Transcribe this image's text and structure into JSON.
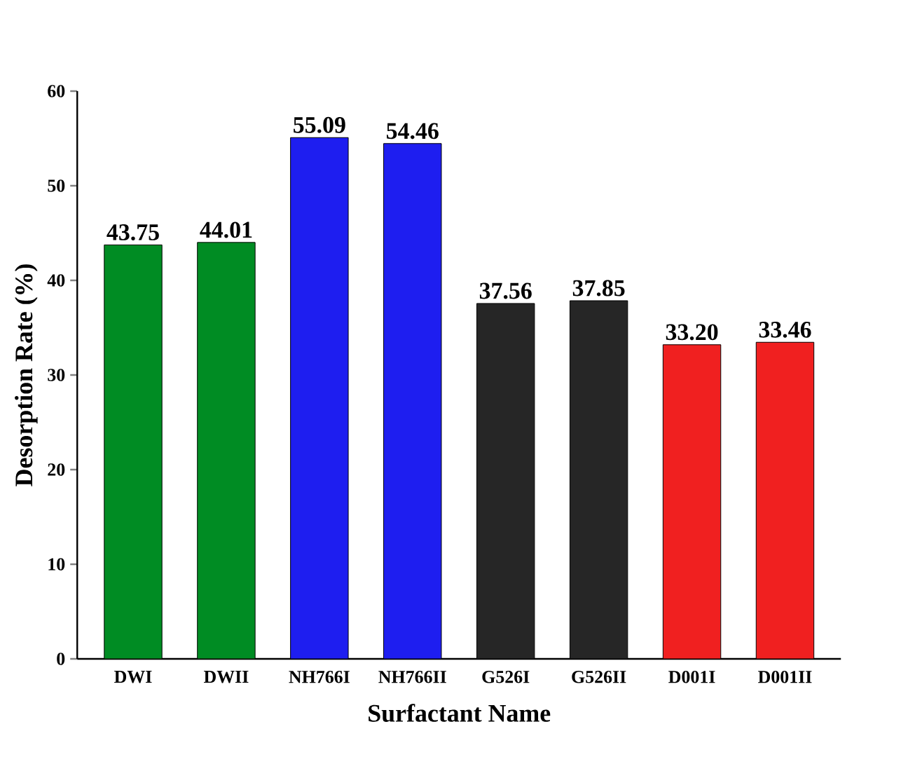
{
  "chart_data": {
    "type": "bar",
    "xlabel": "Surfactant Name",
    "ylabel": "Desorption Rate (%)",
    "categories": [
      "DWI",
      "DWII",
      "NH766I",
      "NH766II",
      "G526I",
      "G526II",
      "D001I",
      "D001II"
    ],
    "values": [
      43.75,
      44.01,
      55.09,
      54.46,
      37.56,
      37.85,
      33.2,
      33.46
    ],
    "value_labels": [
      "43.75",
      "44.01",
      "55.09",
      "54.46",
      "37.56",
      "37.85",
      "33.20",
      "33.46"
    ],
    "colors": [
      "#008c23",
      "#008c23",
      "#1e1ef0",
      "#1e1ef0",
      "#262626",
      "#262626",
      "#f02020",
      "#f02020"
    ],
    "ylim": [
      0,
      60
    ],
    "yticks": [
      0,
      10,
      20,
      30,
      40,
      50,
      60
    ],
    "grid": false
  }
}
